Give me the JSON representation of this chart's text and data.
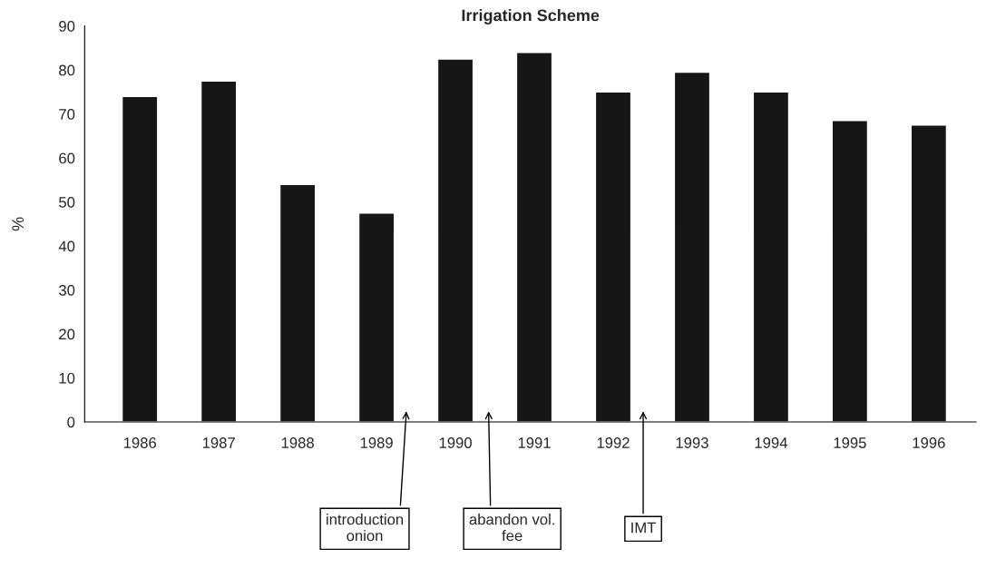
{
  "chart_data": {
    "type": "bar",
    "title": "Irrigation Scheme",
    "ylabel": "%",
    "categories": [
      "1986",
      "1987",
      "1988",
      "1989",
      "1990",
      "1991",
      "1992",
      "1993",
      "1994",
      "1995",
      "1996"
    ],
    "values": [
      74,
      77.5,
      54,
      47.5,
      82.5,
      84,
      75,
      79.5,
      75,
      68.5,
      67.5
    ],
    "color": "#161616",
    "ylim": [
      0,
      90
    ],
    "yticks": [
      0,
      10,
      20,
      30,
      40,
      50,
      60,
      70,
      80,
      90
    ],
    "annotations": [
      "introduction\nonion",
      "abandon vol.\nfee",
      "IMT"
    ],
    "grid": false,
    "legend": false
  }
}
